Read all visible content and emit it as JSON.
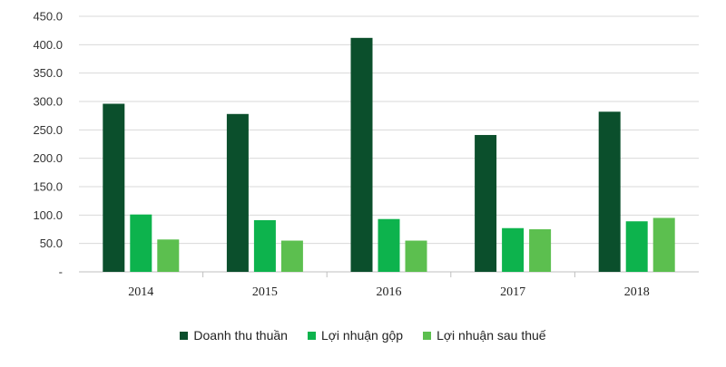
{
  "chart_data": {
    "type": "bar",
    "categories": [
      "2014",
      "2015",
      "2016",
      "2017",
      "2018"
    ],
    "series": [
      {
        "name": "Doanh thu thuần",
        "color": "#0b4f2c",
        "values": [
          296,
          278,
          412,
          241,
          282
        ]
      },
      {
        "name": "Lợi nhuận gộp",
        "color": "#0db34d",
        "values": [
          101,
          91,
          93,
          77,
          89
        ]
      },
      {
        "name": "Lợi nhuận sau thuế",
        "color": "#5cbf4f",
        "values": [
          57,
          55,
          55,
          75,
          95
        ]
      }
    ],
    "y_ticks": [
      "-",
      "50.0",
      "100.0",
      "150.0",
      "200.0",
      "250.0",
      "300.0",
      "350.0",
      "400.0",
      "450.0"
    ],
    "ylim": [
      0,
      450
    ],
    "grid": true,
    "legend_position": "bottom"
  }
}
